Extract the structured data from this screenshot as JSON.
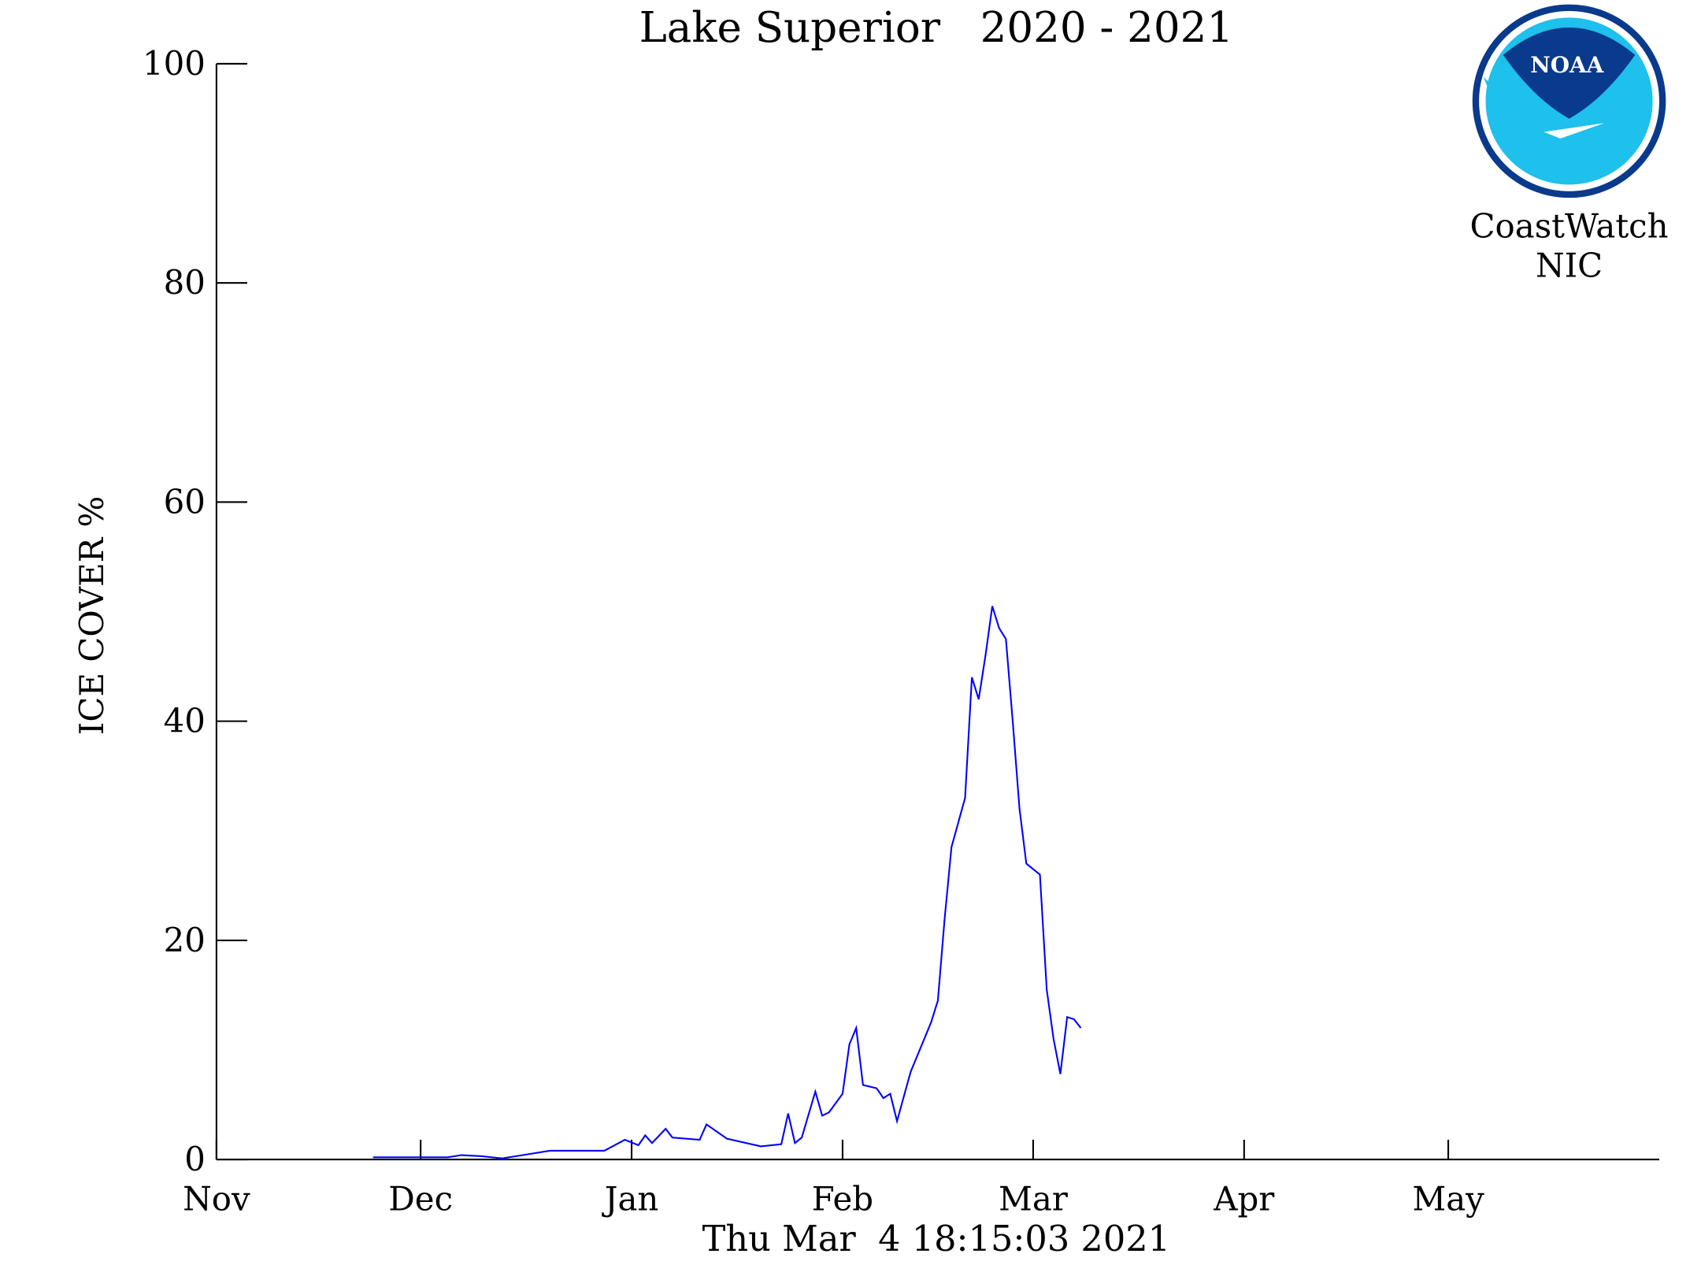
{
  "chart_data": {
    "type": "line",
    "title": "Lake Superior   2020 - 2021",
    "y_label": "ICE COVER %",
    "footer": "Thu Mar  4 18:15:03 2021",
    "logo": {
      "emblem": "NOAA",
      "line1": "CoastWatch",
      "line2": "NIC"
    },
    "xlim": [
      0,
      212
    ],
    "xticks": [
      {
        "value": 0,
        "label": "Nov"
      },
      {
        "value": 30,
        "label": "Dec"
      },
      {
        "value": 61,
        "label": "Jan"
      },
      {
        "value": 92,
        "label": "Feb"
      },
      {
        "value": 120,
        "label": "Mar"
      },
      {
        "value": 151,
        "label": "Apr"
      },
      {
        "value": 181,
        "label": "May"
      }
    ],
    "ylim": [
      0,
      100
    ],
    "yticks": [
      0,
      20,
      40,
      60,
      80,
      100
    ],
    "series": [
      {
        "color": "#0000ff",
        "x": [
          23,
          34,
          36,
          39,
          42,
          46,
          49,
          57,
          60,
          62,
          63,
          64,
          66,
          67,
          71,
          72,
          75,
          80,
          83,
          84,
          85,
          86,
          88,
          89,
          90,
          92,
          93,
          94,
          95,
          97,
          98,
          99,
          100,
          102,
          105,
          106,
          107,
          108,
          110,
          111,
          112,
          113,
          114,
          115,
          116,
          117,
          118,
          119,
          121,
          122,
          123,
          124,
          125,
          126,
          127
        ],
        "values": [
          0.2,
          0.2,
          0.4,
          0.3,
          0.1,
          0.5,
          0.8,
          0.8,
          1.8,
          1.3,
          2.2,
          1.5,
          2.8,
          2.0,
          1.8,
          3.2,
          1.9,
          1.2,
          1.4,
          4.2,
          1.5,
          2.0,
          6.2,
          4.0,
          4.3,
          6.0,
          10.5,
          12.0,
          6.8,
          6.5,
          5.6,
          6.0,
          3.5,
          8.0,
          12.5,
          14.5,
          22,
          28.5,
          33,
          44,
          42,
          46,
          50.5,
          48.5,
          47.5,
          40,
          32,
          27,
          26,
          15.5,
          11,
          7.8,
          13,
          12.8,
          12
        ]
      }
    ]
  }
}
